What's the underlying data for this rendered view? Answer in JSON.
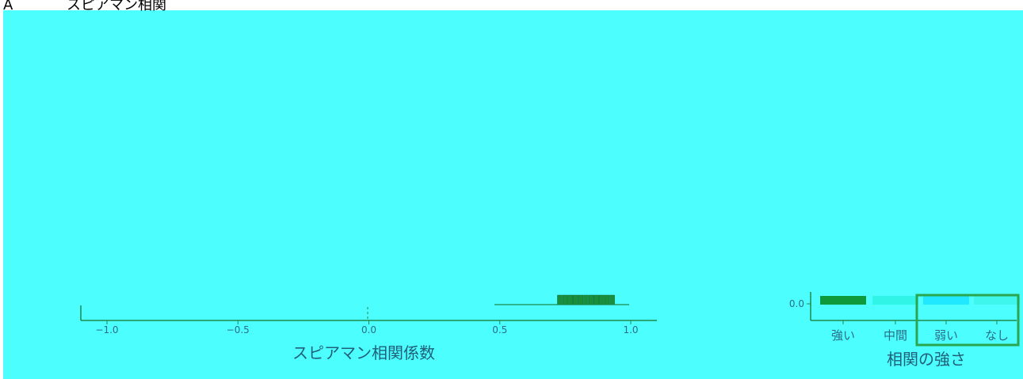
{
  "panel_label": "A",
  "panel_title": "スピアマン相関",
  "colors": {
    "background": "#4dfeff",
    "axis": "#1e8a4a",
    "strong": "#0e9a3a",
    "moderate": "#2ff4e6",
    "weak": "#20e8ff",
    "none": "#3ff6ec",
    "highlight": "#2aa64f",
    "histogram_bar": "#1a8f3a",
    "text": "#2a6f86"
  },
  "chart_data": [
    {
      "type": "bar",
      "title": "",
      "xlabel": "スピアマン相関係数",
      "ylabel": "",
      "xlim": [
        -1.1,
        1.1
      ],
      "x_ticks": [
        -1.0,
        -0.5,
        0.0,
        0.5,
        1.0
      ],
      "x_tick_labels": [
        "−1.0",
        "−0.5",
        "0.0",
        "0.5",
        "1.0"
      ],
      "reference_line_x": 0.0,
      "bins": [
        0.72,
        0.74,
        0.76,
        0.78,
        0.8,
        0.82,
        0.84,
        0.86,
        0.88,
        0.9,
        0.92
      ],
      "counts": [
        1,
        1,
        1,
        1,
        1,
        1,
        1,
        1,
        1,
        1,
        1
      ],
      "grid": false
    },
    {
      "type": "bar",
      "title": "",
      "xlabel": "相関の強さ",
      "ylabel": "",
      "categories": [
        "強い",
        "中間",
        "弱い",
        "なし"
      ],
      "values": [
        1.0,
        0.0,
        0.0,
        0.0
      ],
      "y_tick_labels": [
        "0.0"
      ],
      "highlighted_categories": [
        "弱い",
        "なし"
      ],
      "grid": false
    }
  ]
}
